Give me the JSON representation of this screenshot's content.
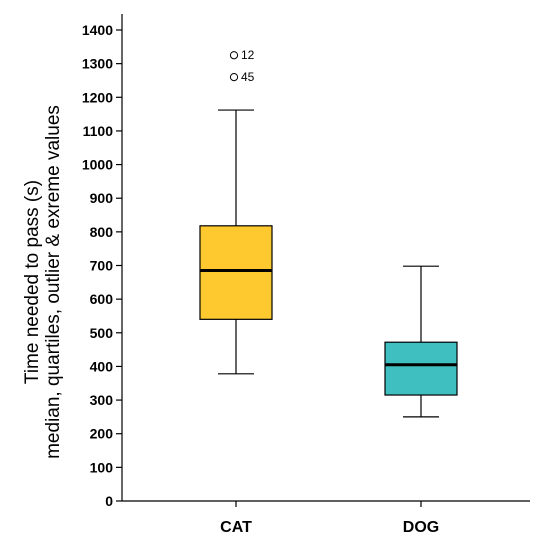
{
  "chart_data": {
    "type": "box",
    "categories": [
      "CAT",
      "DOG"
    ],
    "ylabel_line1": "Time needed to pass (s)",
    "ylabel_line2": "median, quartiles, outlier & exreme values",
    "ylim": [
      0,
      1400
    ],
    "yticks": [
      0,
      100,
      200,
      300,
      400,
      500,
      600,
      700,
      800,
      900,
      1000,
      1100,
      1200,
      1300,
      1400
    ],
    "grid": false,
    "boxes": [
      {
        "category": "CAT",
        "color": "#FDC92F",
        "whisker_low": 378,
        "q1": 540,
        "median": 685,
        "q3": 818,
        "whisker_high": 1162,
        "outliers": [
          {
            "value": 1325,
            "label": "12"
          },
          {
            "value": 1260,
            "label": "45"
          }
        ]
      },
      {
        "category": "DOG",
        "color": "#40BFC1",
        "whisker_low": 250,
        "q1": 315,
        "median": 405,
        "q3": 472,
        "whisker_high": 698,
        "outliers": []
      }
    ]
  }
}
